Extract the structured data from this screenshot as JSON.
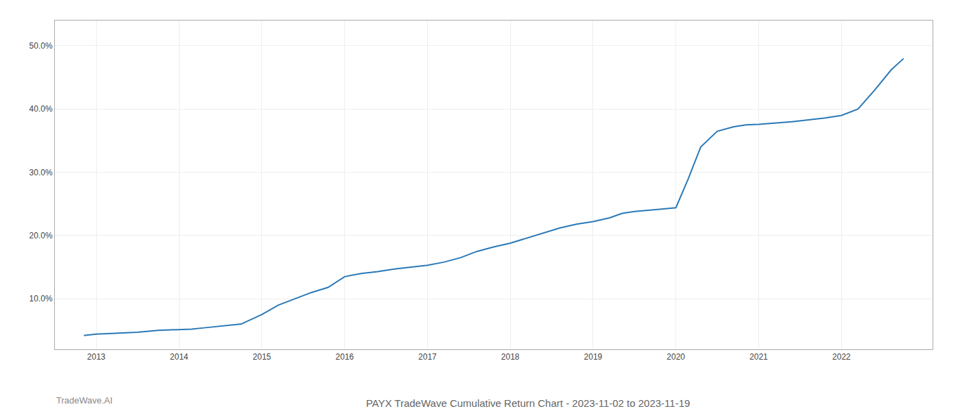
{
  "chart_data": {
    "type": "line",
    "title": "PAYX TradeWave Cumulative Return Chart - 2023-11-02 to 2023-11-19",
    "annotations": [
      {
        "text": "TradeWave.AI"
      }
    ],
    "x": [
      2012.85,
      2012.92,
      2013.0,
      2013.15,
      2013.3,
      2013.5,
      2013.75,
      2014.0,
      2014.15,
      2014.3,
      2014.5,
      2014.75,
      2015.0,
      2015.2,
      2015.4,
      2015.6,
      2015.8,
      2016.0,
      2016.2,
      2016.4,
      2016.6,
      2016.8,
      2017.0,
      2017.2,
      2017.4,
      2017.6,
      2017.8,
      2018.0,
      2018.2,
      2018.4,
      2018.6,
      2018.8,
      2019.0,
      2019.2,
      2019.35,
      2019.5,
      2019.7,
      2019.85,
      2020.0,
      2020.15,
      2020.3,
      2020.5,
      2020.7,
      2020.85,
      2021.0,
      2021.2,
      2021.4,
      2021.6,
      2021.8,
      2022.0,
      2022.2,
      2022.4,
      2022.6,
      2022.75
    ],
    "values": [
      0.042,
      0.043,
      0.044,
      0.045,
      0.046,
      0.047,
      0.05,
      0.051,
      0.052,
      0.054,
      0.057,
      0.06,
      0.075,
      0.09,
      0.1,
      0.11,
      0.118,
      0.135,
      0.14,
      0.143,
      0.147,
      0.15,
      0.153,
      0.158,
      0.165,
      0.175,
      0.182,
      0.188,
      0.196,
      0.204,
      0.212,
      0.218,
      0.222,
      0.228,
      0.235,
      0.238,
      0.24,
      0.242,
      0.244,
      0.29,
      0.34,
      0.365,
      0.372,
      0.375,
      0.376,
      0.378,
      0.38,
      0.383,
      0.386,
      0.39,
      0.4,
      0.43,
      0.462,
      0.48
    ],
    "color": "#2878b8",
    "xlim": [
      2012.5,
      2023.1
    ],
    "xticks": [
      2013,
      2014,
      2015,
      2016,
      2017,
      2018,
      2019,
      2020,
      2021,
      2022
    ],
    "ylim": [
      0.02,
      0.54
    ],
    "yticks": [
      {
        "value": 0.1,
        "label": "10.0%"
      },
      {
        "value": 0.2,
        "label": "20.0%"
      },
      {
        "value": 0.3,
        "label": "30.0%"
      },
      {
        "value": 0.4,
        "label": "40.0%"
      },
      {
        "value": 0.5,
        "label": "50.0%"
      }
    ],
    "grid": true
  }
}
